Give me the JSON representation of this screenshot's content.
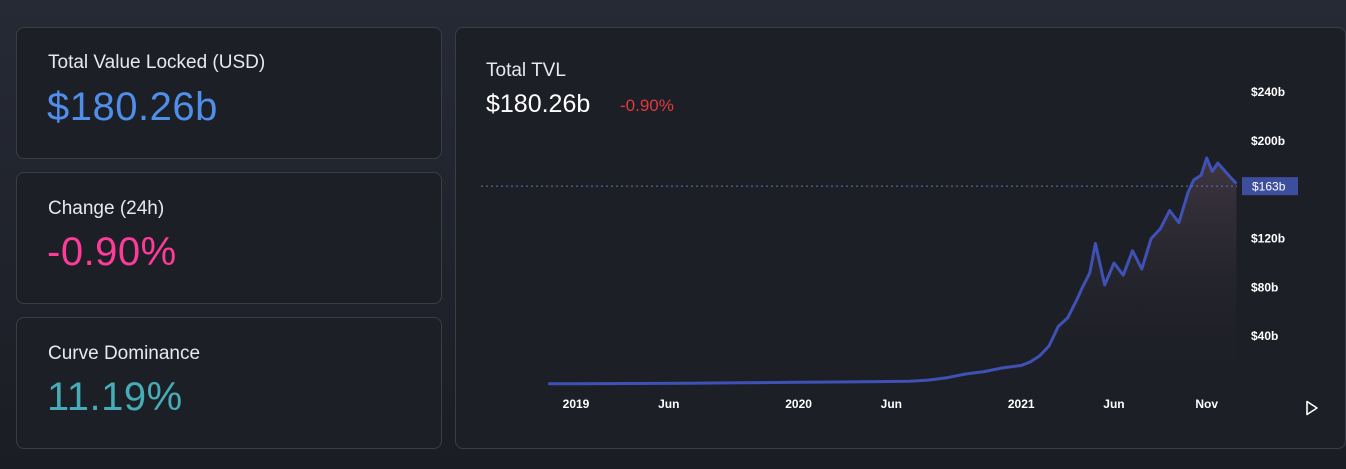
{
  "cards": {
    "tvl": {
      "label": "Total Value Locked (USD)",
      "value": "$180.26b",
      "color": "#4f8fea"
    },
    "change": {
      "label": "Change (24h)",
      "value": "-0.90%",
      "color": "#fd3c99"
    },
    "dominance": {
      "label": "Curve Dominance",
      "value": "11.19%",
      "color": "#46acb7"
    }
  },
  "chart_panel": {
    "title": "Total TVL",
    "value": "$180.26b",
    "change": "-0.90%",
    "change_color": "#e0393e",
    "play_icon": "play-icon"
  },
  "chart_data": {
    "type": "area",
    "title": "Total TVL",
    "xlabel": "",
    "ylabel": "",
    "y_unit": "b USD",
    "ylim": [
      0,
      250
    ],
    "y_ticks": [
      40,
      80,
      120,
      200,
      240
    ],
    "y_tick_labels": [
      "$40b",
      "$80b",
      "$120b",
      "$200b",
      "$240b"
    ],
    "x_tick_labels": [
      "2019",
      "Jun",
      "2020",
      "Jun",
      "2021",
      "Jun",
      "Nov"
    ],
    "x_tick_months": [
      0,
      5,
      12,
      17,
      24,
      29,
      34
    ],
    "crosshair_value": 163,
    "crosshair_label": "$163b",
    "grid": false,
    "line_color": "#3f51b5",
    "series": [
      {
        "x_month": [
          -1.5,
          0,
          3,
          6,
          9,
          12,
          15,
          18,
          19,
          20,
          21,
          22,
          23,
          24,
          24.5,
          25,
          25.5,
          26,
          26.5,
          27,
          27.3,
          27.7,
          28,
          28.5,
          29,
          29.5,
          30,
          30.5,
          31,
          31.5,
          32,
          32.5,
          33,
          33.3,
          33.7,
          34,
          34.3,
          34.6,
          35,
          35.3,
          35.6
        ],
        "values": [
          1,
          1,
          1.2,
          1.4,
          1.8,
          2.2,
          2.5,
          3,
          4,
          6,
          9,
          11,
          14,
          16,
          19,
          24,
          32,
          48,
          55,
          70,
          80,
          92,
          116,
          82,
          100,
          90,
          110,
          95,
          120,
          128,
          143,
          133,
          158,
          168,
          172,
          186,
          175,
          182,
          175,
          170,
          165
        ]
      }
    ]
  }
}
